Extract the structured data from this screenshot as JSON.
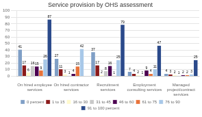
{
  "chart_data": {
    "type": "bar",
    "title": "Service provision by OHS assessment",
    "categories": [
      "On hired employee\nservices",
      "On hired contractor\nservices",
      "Recruitment\nservices",
      "Employment\nconsulting services",
      "Managed\nproject/contract\nservices"
    ],
    "series": [
      {
        "name": "0 percent",
        "color": "#7f9fc6",
        "values": [
          41,
          27,
          37,
          7,
          4
        ]
      },
      {
        "name": "1 to 15",
        "color": "#8b1a1a",
        "values": [
          17,
          11,
          17,
          4,
          3
        ]
      },
      {
        "name": "16 to 30",
        "color": "#fffacd",
        "values": [
          6,
          3,
          2,
          2,
          2
        ]
      },
      {
        "name": "31 to 45",
        "color": "#c8c8c8",
        "values": [
          16,
          1,
          8,
          1,
          1
        ]
      },
      {
        "name": "46 to 60",
        "color": "#4b0050",
        "values": [
          15,
          4,
          16,
          9,
          2
        ]
      },
      {
        "name": "61 to 75",
        "color": "#e8733a",
        "values": [
          9,
          15,
          1,
          4,
          2
        ]
      },
      {
        "name": "76 to 90",
        "color": "#a8c8e8",
        "values": [
          26,
          42,
          25,
          11,
          3
        ]
      },
      {
        "name": "91 to 100 percent",
        "color": "#2b4a8b",
        "values": [
          87,
          0,
          79,
          47,
          25
        ],
        "value_labels": [
          "87",
          null,
          "79",
          "47",
          "25"
        ]
      }
    ],
    "ylim": [
      0,
      100
    ],
    "yticks": [
      0,
      10,
      20,
      30,
      40,
      50,
      60,
      70,
      80,
      90,
      100
    ],
    "grid": true,
    "legend": "bottom",
    "data_labels": true
  }
}
